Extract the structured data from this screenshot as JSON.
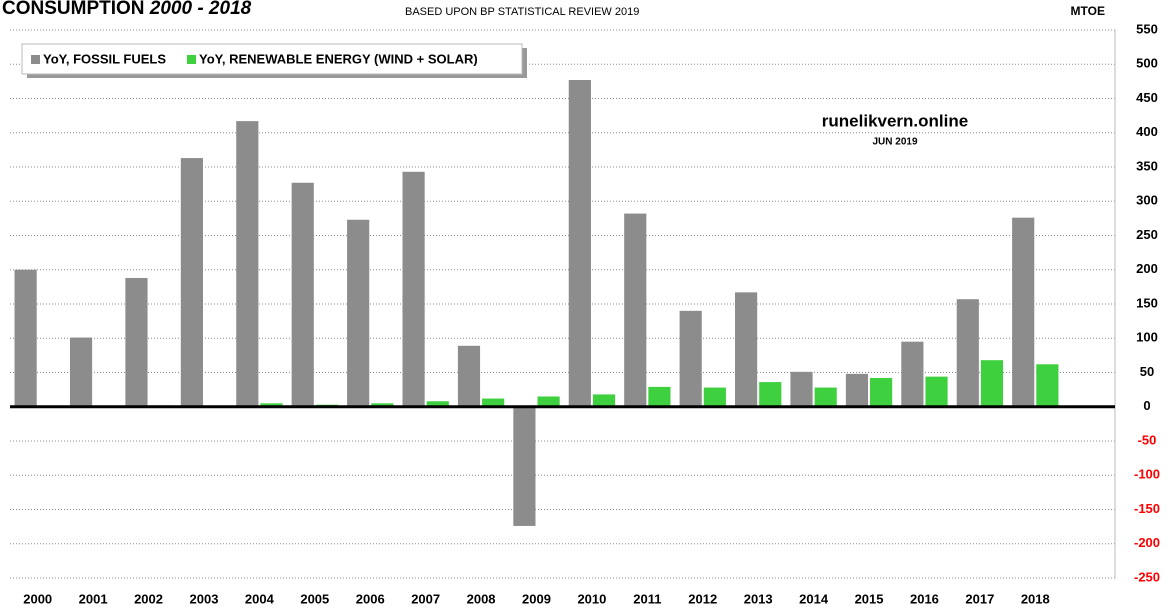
{
  "chart_data": {
    "type": "bar",
    "title": "CONSUMPTION",
    "title_range": "2000 - 2018",
    "subtitle": "BASED UPON BP STATISTICAL REVIEW 2019",
    "unit_label": "MTOE",
    "annotations": [
      "runelikvern.online",
      "JUN 2019"
    ],
    "categories": [
      "2000",
      "2001",
      "2002",
      "2003",
      "2004",
      "2005",
      "2006",
      "2007",
      "2008",
      "2009",
      "2010",
      "2011",
      "2012",
      "2013",
      "2014",
      "2015",
      "2016",
      "2017",
      "2018"
    ],
    "series": [
      {
        "name": "YoY, FOSSIL FUELS",
        "color": "#8c8c8c",
        "values": [
          200,
          101,
          188,
          363,
          417,
          327,
          273,
          343,
          89,
          -174,
          477,
          282,
          140,
          167,
          51,
          48,
          95,
          157,
          276
        ]
      },
      {
        "name": "YoY, RENEWABLE ENERGY (WIND + SOLAR)",
        "color": "#3fd03f",
        "values": [
          0,
          0,
          2,
          0,
          5,
          3,
          5,
          8,
          12,
          15,
          18,
          29,
          28,
          36,
          28,
          42,
          44,
          68,
          62
        ]
      }
    ],
    "ylim": [
      -250,
      550
    ],
    "yticks": [
      -250,
      -200,
      -150,
      -100,
      -50,
      0,
      50,
      100,
      150,
      200,
      250,
      300,
      350,
      400,
      450,
      500,
      550
    ],
    "negative_tick_color": "#ff0000",
    "grid": true,
    "legend": "top-left"
  }
}
